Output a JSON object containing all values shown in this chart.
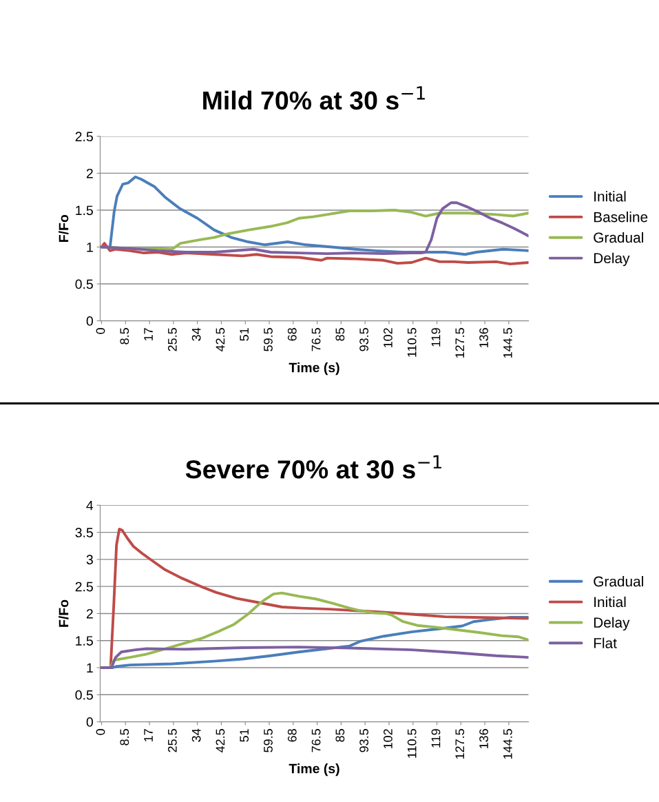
{
  "chart_data": [
    {
      "type": "line",
      "title": "Mild 70% at 30 s$^{−1}$",
      "xlabel": "Time (s)",
      "ylabel": "F/Fo",
      "xlim": [
        -0.5,
        151.5
      ],
      "ylim": [
        0,
        2.5
      ],
      "xticks": [
        0,
        8.5,
        17,
        25.5,
        34,
        42.5,
        51,
        59.5,
        68,
        76.5,
        85,
        93.5,
        102,
        110.5,
        119,
        127.5,
        136,
        144.5
      ],
      "yticks": [
        0,
        0.5,
        1,
        1.5,
        2,
        2.5
      ],
      "grid": "y",
      "legend": "right",
      "series": [
        {
          "name": "Initial",
          "color": "#4a7ebb",
          "x": [
            0,
            3,
            4.5,
            5.5,
            7.5,
            9.5,
            12,
            14,
            18.7,
            22.7,
            27.8,
            34,
            40,
            46,
            52,
            58,
            66,
            72.5,
            81.6,
            90,
            97,
            107,
            115,
            122,
            129,
            133,
            142.5,
            151.5
          ],
          "values": [
            1.0,
            1.0,
            1.49,
            1.69,
            1.85,
            1.87,
            1.95,
            1.92,
            1.82,
            1.67,
            1.52,
            1.39,
            1.23,
            1.13,
            1.07,
            1.03,
            1.07,
            1.03,
            1.0,
            0.97,
            0.95,
            0.93,
            0.93,
            0.93,
            0.9,
            0.93,
            0.97,
            0.95
          ]
        },
        {
          "name": "Baseline",
          "color": "#be4b48",
          "x": [
            0,
            1,
            3,
            5,
            10,
            15,
            20,
            25,
            30,
            40,
            50,
            55,
            60,
            70,
            78,
            80,
            90,
            100,
            105,
            110,
            115,
            120,
            125,
            130,
            140,
            145,
            151.5
          ],
          "values": [
            1.0,
            1.05,
            0.95,
            0.97,
            0.95,
            0.92,
            0.93,
            0.9,
            0.92,
            0.9,
            0.88,
            0.9,
            0.87,
            0.86,
            0.82,
            0.85,
            0.84,
            0.82,
            0.78,
            0.79,
            0.85,
            0.8,
            0.8,
            0.79,
            0.8,
            0.77,
            0.79
          ]
        },
        {
          "name": "Gradual",
          "color": "#98b954",
          "x": [
            0,
            10,
            20,
            25,
            28,
            35,
            40,
            45,
            52,
            60,
            66,
            70,
            75,
            80,
            88,
            96,
            104,
            110,
            115,
            120,
            130,
            140,
            146,
            151.5
          ],
          "values": [
            1.0,
            0.98,
            0.98,
            0.97,
            1.05,
            1.1,
            1.13,
            1.18,
            1.23,
            1.28,
            1.33,
            1.39,
            1.41,
            1.44,
            1.49,
            1.49,
            1.5,
            1.47,
            1.42,
            1.46,
            1.46,
            1.44,
            1.42,
            1.46
          ]
        },
        {
          "name": "Delay",
          "color": "#7d60a0",
          "x": [
            0,
            10,
            20,
            30,
            40,
            54,
            60,
            70,
            80,
            90,
            100,
            110,
            113.5,
            115,
            117,
            119,
            121,
            124,
            126,
            130,
            134,
            138,
            142,
            146,
            149,
            151.5
          ],
          "values": [
            1.0,
            0.98,
            0.95,
            0.93,
            0.93,
            0.97,
            0.93,
            0.92,
            0.91,
            0.92,
            0.91,
            0.92,
            0.92,
            0.93,
            1.1,
            1.39,
            1.52,
            1.6,
            1.6,
            1.54,
            1.47,
            1.39,
            1.33,
            1.26,
            1.2,
            1.15
          ]
        }
      ]
    },
    {
      "type": "line",
      "title": "Severe 70% at 30 s$^{−1}$",
      "xlabel": "Time (s)",
      "ylabel": "F/Fo",
      "xlim": [
        -0.5,
        151.5
      ],
      "ylim": [
        0,
        4
      ],
      "xticks": [
        0,
        8.5,
        17,
        25.5,
        34,
        42.5,
        51,
        59.5,
        68,
        76.5,
        85,
        93.5,
        102,
        110.5,
        119,
        127.5,
        136,
        144.5
      ],
      "yticks": [
        0,
        0.5,
        1,
        1.5,
        2,
        2.5,
        3,
        3.5,
        4
      ],
      "grid": "y",
      "legend": "right",
      "series": [
        {
          "name": "Gradual",
          "color": "#4a7ebb",
          "x": [
            0,
            4,
            5,
            10,
            25,
            40,
            50,
            60,
            70,
            80,
            88,
            92,
            100,
            110,
            120,
            128,
            132,
            138,
            145,
            151.5
          ],
          "values": [
            1.0,
            1.0,
            1.02,
            1.05,
            1.07,
            1.12,
            1.16,
            1.22,
            1.29,
            1.35,
            1.4,
            1.49,
            1.58,
            1.66,
            1.72,
            1.77,
            1.85,
            1.89,
            1.93,
            1.93
          ]
        },
        {
          "name": "Initial",
          "color": "#be4b48",
          "x": [
            0,
            3.2,
            4.3,
            5.3,
            6.3,
            7.3,
            9.3,
            11.3,
            14.4,
            18.4,
            22.5,
            28.6,
            35.7,
            40.7,
            47.8,
            56,
            64,
            71,
            81,
            91.4,
            101.5,
            111.7,
            121.8,
            132,
            142,
            151.5
          ],
          "values": [
            1.0,
            1.0,
            2.13,
            3.27,
            3.56,
            3.54,
            3.38,
            3.24,
            3.11,
            2.96,
            2.81,
            2.65,
            2.49,
            2.39,
            2.28,
            2.2,
            2.12,
            2.1,
            2.08,
            2.05,
            2.02,
            1.98,
            1.94,
            1.93,
            1.92,
            1.91
          ]
        },
        {
          "name": "Delay",
          "color": "#98b954",
          "x": [
            0,
            3,
            4.5,
            10,
            16,
            22,
            30,
            36,
            42,
            47,
            52,
            56,
            58,
            61,
            64,
            70,
            76,
            82,
            88,
            92,
            97,
            101,
            103,
            107,
            112,
            118,
            126,
            134,
            142,
            148,
            151.5
          ],
          "values": [
            1.0,
            1.0,
            1.14,
            1.19,
            1.25,
            1.34,
            1.46,
            1.55,
            1.68,
            1.8,
            1.99,
            2.18,
            2.26,
            2.36,
            2.38,
            2.32,
            2.27,
            2.19,
            2.1,
            2.05,
            2.01,
            2.0,
            1.97,
            1.85,
            1.78,
            1.75,
            1.7,
            1.65,
            1.59,
            1.57,
            1.51
          ]
        },
        {
          "name": "Flat",
          "color": "#7d60a0",
          "x": [
            0,
            3.5,
            5,
            7,
            12,
            16,
            30,
            50,
            70,
            90,
            110,
            125,
            140,
            151.5
          ],
          "values": [
            1.0,
            1.0,
            1.19,
            1.29,
            1.33,
            1.35,
            1.34,
            1.37,
            1.38,
            1.36,
            1.33,
            1.28,
            1.22,
            1.19
          ]
        }
      ]
    }
  ]
}
